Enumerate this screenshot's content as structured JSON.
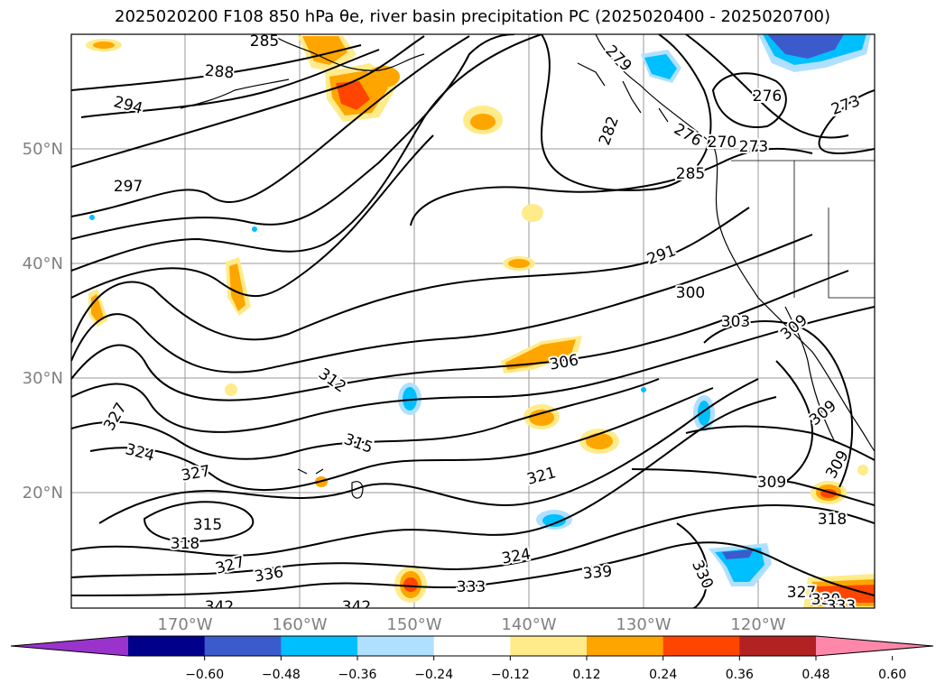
{
  "title": "2025020200 F108 850 hPa θe, river basin precipitation PC (2025020400 - 2025020700)",
  "lat_labels": [
    "50°N",
    "40°N",
    "30°N",
    "20°N"
  ],
  "lon_labels": [
    "170°W",
    "160°W",
    "150°W",
    "140°W",
    "130°W",
    "120°W"
  ],
  "colorbar": {
    "ticks": [
      "−0.60",
      "−0.48",
      "−0.36",
      "−0.24",
      "−0.12",
      "0.12",
      "0.24",
      "0.36",
      "0.48",
      "0.60"
    ],
    "colors": [
      "#9933cc",
      "#00008b",
      "#3b5bcc",
      "#00bfff",
      "#b0e0ff",
      "#ffffff",
      "#ffeb8a",
      "#ffa500",
      "#ff4500",
      "#b22222",
      "#ff88aa"
    ]
  },
  "contour_labels": [
    "285",
    "288",
    "294",
    "297",
    "279",
    "282",
    "276",
    "270",
    "273",
    "276",
    "273",
    "285",
    "291",
    "300",
    "303",
    "309",
    "306",
    "312",
    "315",
    "327",
    "324",
    "327",
    "315",
    "318",
    "327",
    "336",
    "342",
    "342",
    "321",
    "324",
    "333",
    "339",
    "330",
    "327",
    "330",
    "333",
    "309",
    "309",
    "309",
    "318"
  ]
}
